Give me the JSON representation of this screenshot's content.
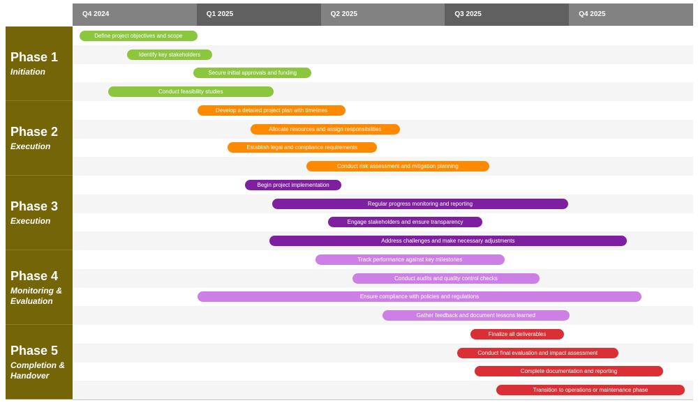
{
  "chart_data": {
    "type": "gantt",
    "quarters": [
      "Q4 2024",
      "Q1 2025",
      "Q2 2025",
      "Q3 2025",
      "Q4 2025"
    ],
    "time_range": [
      "2024-10-01",
      "2026-01-01"
    ],
    "phases": [
      {
        "title": "Phase 1",
        "subtitle": "Initiation",
        "color": "#8cc63f",
        "tasks": [
          {
            "label": "Define project objectives and scope",
            "start": "2024-10-06",
            "end": "2025-01-01"
          },
          {
            "label": "Identify key stakeholders",
            "start": "2024-11-10",
            "end": "2025-01-12"
          },
          {
            "label": "Secure initial approvals and funding",
            "start": "2024-12-29",
            "end": "2025-03-26"
          },
          {
            "label": "Conduct feasibility studies",
            "start": "2024-10-27",
            "end": "2025-02-26"
          }
        ]
      },
      {
        "title": "Phase 2",
        "subtitle": "Execution",
        "color": "#ff8a00",
        "tasks": [
          {
            "label": "Develop a detailed project plan with timelines",
            "start": "2025-01-01",
            "end": "2025-04-20"
          },
          {
            "label": "Allocate resources and assign responsibilities",
            "start": "2025-02-09",
            "end": "2025-05-30"
          },
          {
            "label": "Establish legal and compliance requirements",
            "start": "2025-01-23",
            "end": "2025-05-13"
          },
          {
            "label": "Conduct risk assessment and mitigation planning",
            "start": "2025-03-22",
            "end": "2025-08-04"
          }
        ]
      },
      {
        "title": "Phase 3",
        "subtitle": "Execution",
        "color": "#7d1fa0",
        "tasks": [
          {
            "label": "Begin project implementation",
            "start": "2025-02-05",
            "end": "2025-04-17"
          },
          {
            "label": "Regular progress monitoring and reporting",
            "start": "2025-02-25",
            "end": "2025-10-01"
          },
          {
            "label": "Engage stakeholders and ensure transparency",
            "start": "2025-04-07",
            "end": "2025-07-30"
          },
          {
            "label": "Address challenges and make necessary adjustments",
            "start": "2025-02-23",
            "end": "2025-11-13"
          }
        ]
      },
      {
        "title": "Phase 4",
        "subtitle": "Monitoring & Evaluation",
        "color": "#cc80e6",
        "tasks": [
          {
            "label": "Track performance against key milestones",
            "start": "2025-03-29",
            "end": "2025-08-15"
          },
          {
            "label": "Conduct audits and quality control checks",
            "start": "2025-04-25",
            "end": "2025-09-10"
          },
          {
            "label": "Ensure compliance with policies and regulations",
            "start": "2025-01-01",
            "end": "2025-11-24"
          },
          {
            "label": "Gather feedback and document lessons learned",
            "start": "2025-05-17",
            "end": "2025-10-02"
          }
        ]
      },
      {
        "title": "Phase 5",
        "subtitle": "Completion & Handover",
        "color": "#d92f35",
        "tasks": [
          {
            "label": "Finalize all deliverables",
            "start": "2025-07-21",
            "end": "2025-09-28"
          },
          {
            "label": "Conduct final evaluation and impact assessment",
            "start": "2025-07-11",
            "end": "2025-11-07"
          },
          {
            "label": "Complete documentation and reporting",
            "start": "2025-07-24",
            "end": "2025-12-10"
          },
          {
            "label": "Transition to operations or maintenance phase",
            "start": "2025-08-09",
            "end": "2025-12-26"
          }
        ]
      }
    ],
    "header_colors": [
      "#828282",
      "#606060"
    ]
  }
}
